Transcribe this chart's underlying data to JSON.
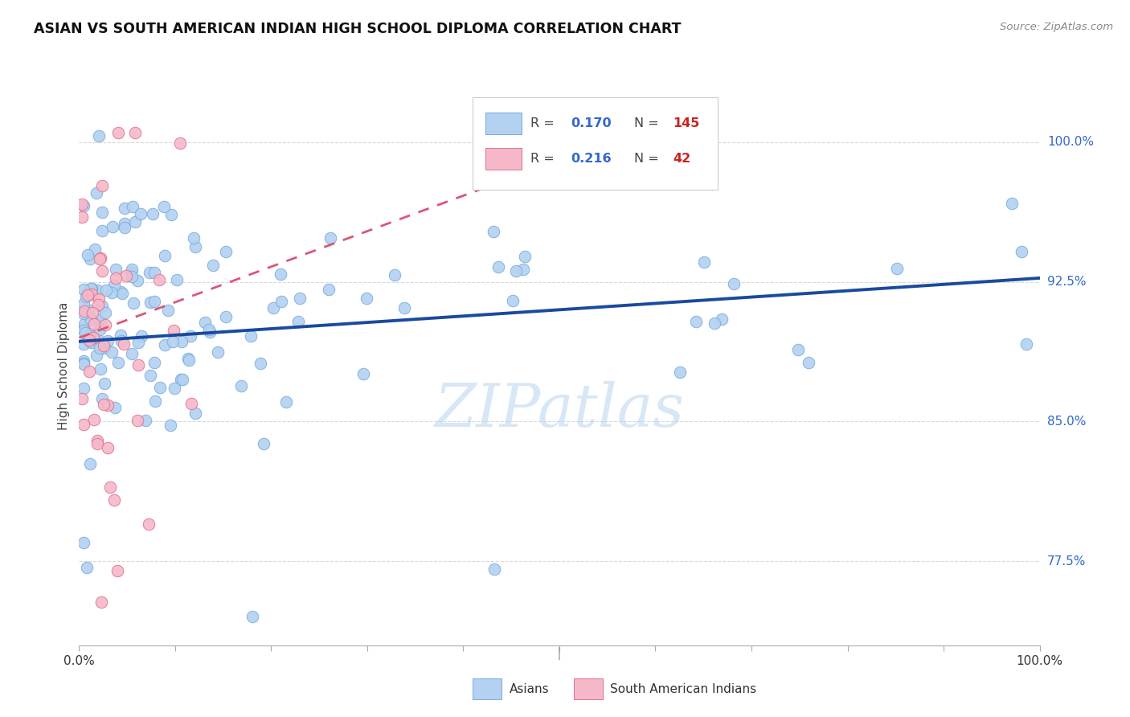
{
  "title": "ASIAN VS SOUTH AMERICAN INDIAN HIGH SCHOOL DIPLOMA CORRELATION CHART",
  "source": "Source: ZipAtlas.com",
  "ylabel": "High School Diploma",
  "ytick_labels": [
    "77.5%",
    "85.0%",
    "92.5%",
    "100.0%"
  ],
  "ytick_values": [
    0.775,
    0.85,
    0.925,
    1.0
  ],
  "xlim": [
    0.0,
    1.0
  ],
  "ylim": [
    0.73,
    1.03
  ],
  "background_color": "#ffffff",
  "grid_color": "#d8d8d8",
  "watermark": "ZIPatlas",
  "legend": {
    "asian_R": "0.170",
    "asian_N": "145",
    "sai_R": "0.216",
    "sai_N": "42",
    "R_color": "#3366cc",
    "N_color": "#cc2222"
  },
  "asian_scatter_color": "#b3d1f0",
  "asian_scatter_edge": "#7aabdf",
  "sai_scatter_color": "#f5b8c8",
  "sai_scatter_edge": "#e07090",
  "asian_line_color": "#1a4a9e",
  "sai_line_color": "#dd5577",
  "asian_line_x": [
    0.0,
    1.0
  ],
  "asian_line_y": [
    0.893,
    0.927
  ],
  "sai_line_x": [
    0.0,
    0.42
  ],
  "sai_line_y": [
    0.895,
    0.975
  ]
}
